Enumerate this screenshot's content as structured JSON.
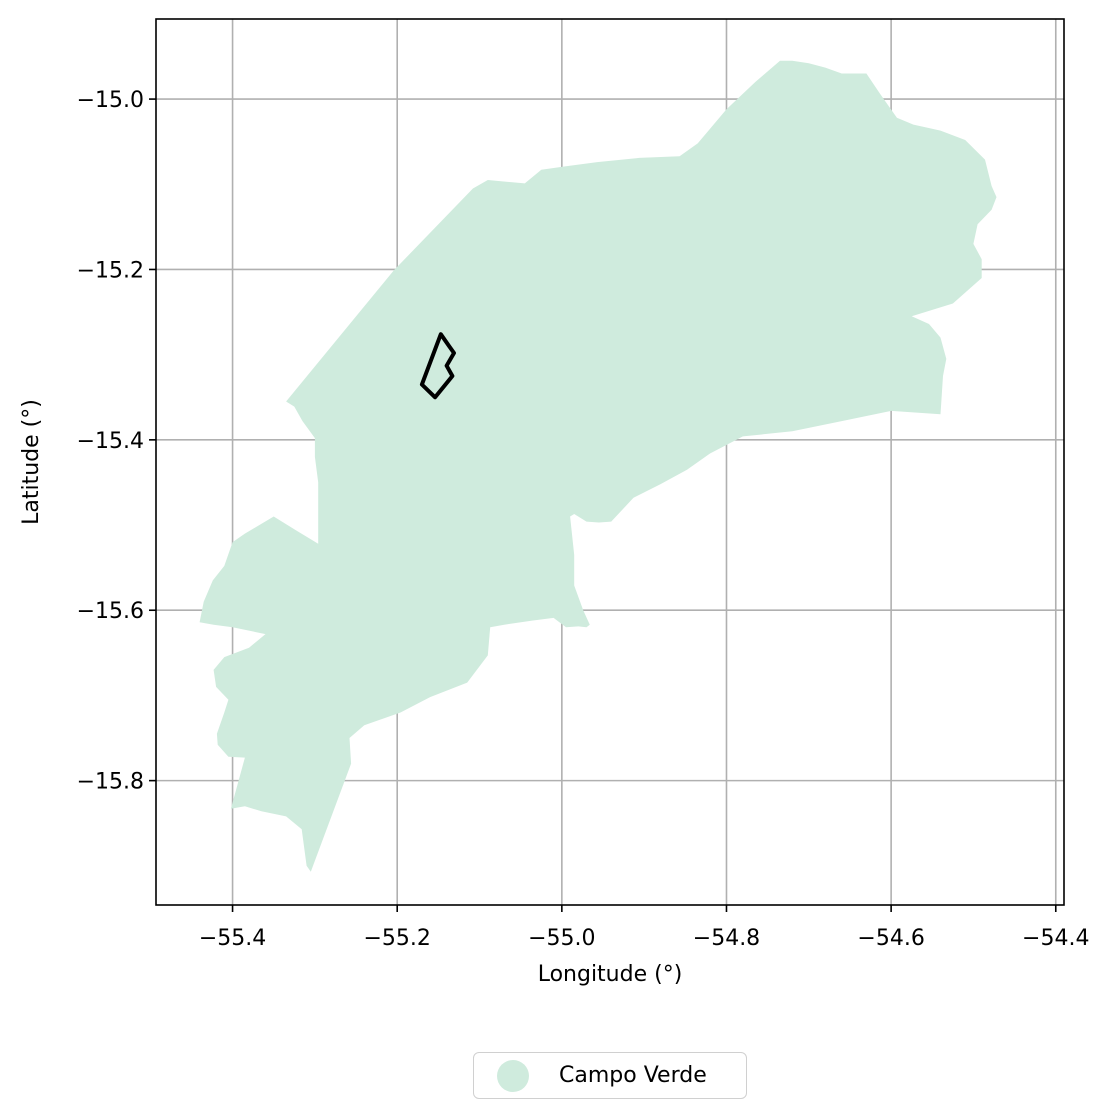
{
  "chart_data": {
    "type": "map",
    "title": "",
    "xlabel": "Longitude (°)",
    "ylabel": "Latitude (°)",
    "xlim": [
      -55.493,
      -54.39
    ],
    "ylim": [
      -15.946,
      -14.906
    ],
    "xticks": [
      -55.4,
      -55.2,
      -55.0,
      -54.8,
      -54.6,
      -54.4
    ],
    "xtick_labels": [
      "−55.4",
      "−55.2",
      "−55.0",
      "−54.8",
      "−54.6",
      "−54.4"
    ],
    "yticks": [
      -15.0,
      -15.2,
      -15.4,
      -15.6,
      -15.8
    ],
    "ytick_labels": [
      "−15.0",
      "−15.2",
      "−15.4",
      "−15.6",
      "−15.8"
    ],
    "grid": true,
    "legend_position": "bottom-center",
    "legend_entries": [
      {
        "label": "Campo Verde",
        "color": "#cfebdd"
      }
    ],
    "region": {
      "name": "Campo Verde",
      "fill": "#cfebdd",
      "coords": [
        [
          -55.335,
          -15.355
        ],
        [
          -55.204,
          -15.201
        ],
        [
          -55.108,
          -15.105
        ],
        [
          -55.09,
          -15.095
        ],
        [
          -55.045,
          -15.099
        ],
        [
          -55.025,
          -15.083
        ],
        [
          -54.996,
          -15.079
        ],
        [
          -54.957,
          -15.074
        ],
        [
          -54.906,
          -15.069
        ],
        [
          -54.857,
          -15.067
        ],
        [
          -54.835,
          -15.052
        ],
        [
          -54.8,
          -15.012
        ],
        [
          -54.765,
          -14.98
        ],
        [
          -54.735,
          -14.955
        ],
        [
          -54.72,
          -14.955
        ],
        [
          -54.7,
          -14.958
        ],
        [
          -54.68,
          -14.963
        ],
        [
          -54.66,
          -14.97
        ],
        [
          -54.63,
          -14.97
        ],
        [
          -54.614,
          -14.993
        ],
        [
          -54.593,
          -15.022
        ],
        [
          -54.573,
          -15.03
        ],
        [
          -54.54,
          -15.037
        ],
        [
          -54.51,
          -15.048
        ],
        [
          -54.486,
          -15.071
        ],
        [
          -54.478,
          -15.102
        ],
        [
          -54.472,
          -15.115
        ],
        [
          -54.478,
          -15.13
        ],
        [
          -54.495,
          -15.147
        ],
        [
          -54.5,
          -15.17
        ],
        [
          -54.49,
          -15.188
        ],
        [
          -54.49,
          -15.21
        ],
        [
          -54.525,
          -15.24
        ],
        [
          -54.575,
          -15.255
        ],
        [
          -54.554,
          -15.264
        ],
        [
          -54.54,
          -15.28
        ],
        [
          -54.533,
          -15.305
        ],
        [
          -54.537,
          -15.325
        ],
        [
          -54.54,
          -15.37
        ],
        [
          -54.6,
          -15.366
        ],
        [
          -54.66,
          -15.378
        ],
        [
          -54.72,
          -15.39
        ],
        [
          -54.78,
          -15.396
        ],
        [
          -54.82,
          -15.416
        ],
        [
          -54.848,
          -15.435
        ],
        [
          -54.88,
          -15.452
        ],
        [
          -54.913,
          -15.468
        ],
        [
          -54.94,
          -15.496
        ],
        [
          -54.955,
          -15.497
        ],
        [
          -54.97,
          -15.496
        ],
        [
          -54.985,
          -15.487
        ],
        [
          -54.99,
          -15.49
        ],
        [
          -54.985,
          -15.535
        ],
        [
          -54.985,
          -15.571
        ],
        [
          -54.974,
          -15.6
        ],
        [
          -54.966,
          -15.617
        ],
        [
          -54.97,
          -15.62
        ],
        [
          -54.98,
          -15.619
        ],
        [
          -54.995,
          -15.62
        ],
        [
          -55.01,
          -15.609
        ],
        [
          -55.035,
          -15.612
        ],
        [
          -55.07,
          -15.617
        ],
        [
          -55.087,
          -15.62
        ],
        [
          -55.09,
          -15.653
        ],
        [
          -55.115,
          -15.685
        ],
        [
          -55.16,
          -15.702
        ],
        [
          -55.196,
          -15.72
        ],
        [
          -55.24,
          -15.735
        ],
        [
          -55.258,
          -15.75
        ],
        [
          -55.256,
          -15.78
        ],
        [
          -55.305,
          -15.907
        ],
        [
          -55.31,
          -15.9
        ],
        [
          -55.316,
          -15.857
        ],
        [
          -55.335,
          -15.842
        ],
        [
          -55.365,
          -15.836
        ],
        [
          -55.385,
          -15.83
        ],
        [
          -55.402,
          -15.833
        ],
        [
          -55.385,
          -15.773
        ],
        [
          -55.405,
          -15.772
        ],
        [
          -55.418,
          -15.758
        ],
        [
          -55.419,
          -15.745
        ],
        [
          -55.41,
          -15.72
        ],
        [
          -55.405,
          -15.705
        ],
        [
          -55.42,
          -15.69
        ],
        [
          -55.423,
          -15.67
        ],
        [
          -55.41,
          -15.655
        ],
        [
          -55.38,
          -15.644
        ],
        [
          -55.36,
          -15.628
        ],
        [
          -55.4,
          -15.62
        ],
        [
          -55.423,
          -15.617
        ],
        [
          -55.44,
          -15.614
        ],
        [
          -55.435,
          -15.59
        ],
        [
          -55.424,
          -15.565
        ],
        [
          -55.41,
          -15.548
        ],
        [
          -55.4,
          -15.52
        ],
        [
          -55.385,
          -15.51
        ],
        [
          -55.35,
          -15.49
        ],
        [
          -55.323,
          -15.506
        ],
        [
          -55.296,
          -15.522
        ],
        [
          -55.296,
          -15.45
        ],
        [
          -55.3,
          -15.42
        ],
        [
          -55.3,
          -15.398
        ],
        [
          -55.315,
          -15.378
        ],
        [
          -55.325,
          -15.361
        ],
        [
          -55.335,
          -15.355
        ]
      ]
    },
    "parcel": {
      "stroke": "#000000",
      "coords": [
        [
          -55.147,
          -15.276
        ],
        [
          -55.137,
          -15.29
        ],
        [
          -55.131,
          -15.298
        ],
        [
          -55.14,
          -15.313
        ],
        [
          -55.133,
          -15.325
        ],
        [
          -55.154,
          -15.35
        ],
        [
          -55.17,
          -15.335
        ],
        [
          -55.147,
          -15.276
        ]
      ]
    }
  }
}
